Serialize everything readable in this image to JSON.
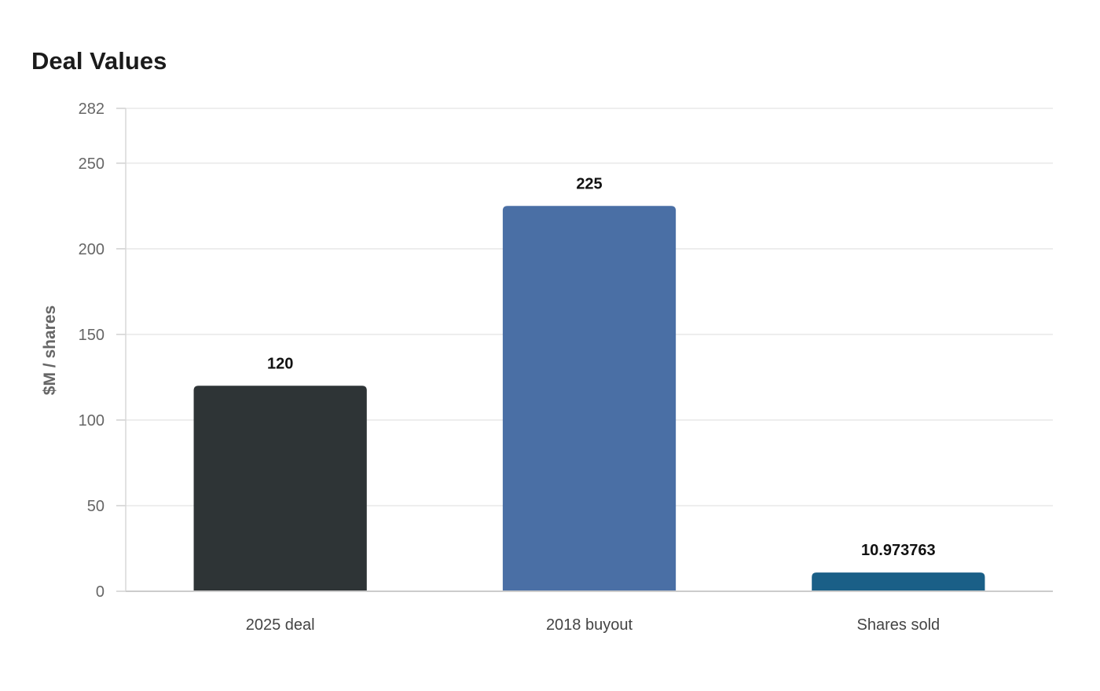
{
  "chart_data": {
    "type": "bar",
    "title": "Deal Values",
    "xlabel": "",
    "ylabel": "$M / shares",
    "categories": [
      "2025 deal",
      "2018 buyout",
      "Shares sold"
    ],
    "values": [
      120,
      225,
      10.973763
    ],
    "value_labels": [
      "120",
      "225",
      "10.973763"
    ],
    "colors": [
      "#2e3436",
      "#4a6fa5",
      "#1a5f87"
    ],
    "ylim": [
      0,
      282
    ],
    "yticks": [
      0,
      50,
      100,
      150,
      200,
      250,
      282
    ],
    "grid": true,
    "legend": "none"
  }
}
